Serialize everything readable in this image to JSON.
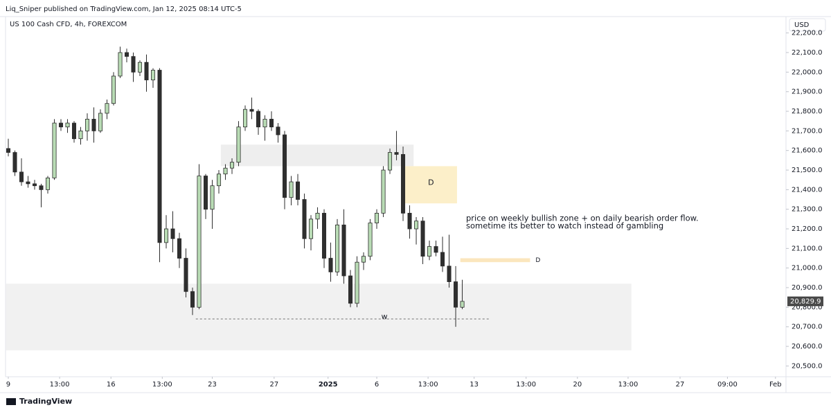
{
  "header": {
    "text": "Liq_Sniper published on TradingView.com, Jan 12, 2025 08:14 UTC-5"
  },
  "footer": {
    "brand": "TradingView"
  },
  "chart_data": {
    "type": "candlestick",
    "title": "US 100 Cash CFD, 4h, FOREXCOM",
    "currency": "USD",
    "grid": false,
    "up_color": "#b9dcb5",
    "down_color": "#2f2f2f",
    "outline_color": "#2b2b2b",
    "x": [
      0,
      1,
      2,
      3,
      4,
      5,
      6,
      7,
      8,
      9,
      10,
      11,
      12,
      13,
      14,
      15,
      16,
      17,
      18,
      19,
      20,
      21,
      22,
      23,
      24,
      25,
      26,
      27,
      28,
      29,
      30,
      31,
      32,
      33,
      34,
      35,
      36,
      37,
      38,
      39,
      40,
      41,
      42,
      43,
      44,
      45,
      46,
      47,
      48,
      49,
      50,
      51,
      52,
      53,
      54,
      55,
      56,
      57,
      58,
      59,
      60,
      61,
      62,
      63,
      64,
      65,
      66,
      67,
      68,
      69
    ],
    "open": [
      21610,
      21590,
      21490,
      21440,
      21430,
      21420,
      21400,
      21460,
      21740,
      21720,
      21740,
      21660,
      21700,
      21760,
      21700,
      21790,
      21840,
      21980,
      22100,
      22080,
      22000,
      22050,
      21960,
      22010,
      21130,
      21200,
      21150,
      21050,
      20880,
      20800,
      21470,
      21300,
      21420,
      21480,
      21510,
      21540,
      21720,
      21810,
      21800,
      21720,
      21760,
      21720,
      21680,
      21360,
      21440,
      21350,
      21150,
      21250,
      21280,
      21050,
      20980,
      21220,
      20960,
      20820,
      21030,
      21060,
      21230,
      21280,
      21500,
      21590,
      21580,
      21280,
      21200,
      21240,
      21060,
      21110,
      21080,
      21010,
      20930,
      20800
    ],
    "high": [
      21660,
      21600,
      21560,
      21470,
      21450,
      21430,
      21470,
      21760,
      21760,
      21760,
      21750,
      21720,
      21790,
      21820,
      21810,
      21860,
      22000,
      22130,
      22120,
      22100,
      22060,
      22090,
      22020,
      22020,
      21270,
      21290,
      21180,
      21100,
      20900,
      21530,
      21480,
      21450,
      21500,
      21530,
      21560,
      21750,
      21830,
      21870,
      21810,
      21780,
      21800,
      21740,
      21700,
      21470,
      21480,
      21380,
      21270,
      21310,
      21300,
      21130,
      21250,
      21300,
      20990,
      21060,
      21080,
      21250,
      21300,
      21520,
      21610,
      21700,
      21620,
      21320,
      21260,
      21260,
      21140,
      21140,
      21160,
      21170,
      21010,
      20940
    ],
    "low": [
      21570,
      21470,
      21420,
      21410,
      21400,
      21310,
      21380,
      21450,
      21700,
      21690,
      21640,
      21630,
      21650,
      21640,
      21690,
      21760,
      21830,
      21970,
      22050,
      21950,
      21980,
      21900,
      21920,
      21030,
      21100,
      21080,
      21000,
      20850,
      20760,
      20790,
      21250,
      21200,
      21380,
      21450,
      21480,
      21520,
      21700,
      21760,
      21680,
      21650,
      21700,
      21640,
      21300,
      21320,
      21320,
      21100,
      21090,
      21200,
      21000,
      20930,
      20960,
      20920,
      20800,
      20800,
      20990,
      21040,
      21200,
      21260,
      21480,
      21550,
      21240,
      21150,
      21120,
      21020,
      21040,
      21060,
      20980,
      20900,
      20700,
      20790
    ],
    "close": [
      21590,
      21490,
      21440,
      21430,
      21420,
      21400,
      21460,
      21740,
      21720,
      21740,
      21660,
      21700,
      21760,
      21700,
      21790,
      21840,
      21980,
      22100,
      22080,
      22000,
      22050,
      21960,
      22010,
      21130,
      21200,
      21150,
      21050,
      20880,
      20800,
      21470,
      21300,
      21420,
      21480,
      21510,
      21540,
      21720,
      21810,
      21800,
      21720,
      21760,
      21720,
      21680,
      21360,
      21440,
      21350,
      21150,
      21250,
      21280,
      21050,
      20980,
      21220,
      20960,
      20820,
      21030,
      21060,
      21230,
      21280,
      21500,
      21590,
      21580,
      21280,
      21200,
      21240,
      21060,
      21110,
      21080,
      21010,
      20930,
      20800,
      20829.9
    ],
    "last_price": {
      "value": 20829.9,
      "label": "20,829.9"
    },
    "xlim": [
      -0.42,
      118.2
    ],
    "xticks": [
      {
        "value": 0,
        "label": "9"
      },
      {
        "value": 7.8,
        "label": "13:00"
      },
      {
        "value": 15.6,
        "label": "16"
      },
      {
        "value": 23.4,
        "label": "13:00"
      },
      {
        "value": 31,
        "label": "23"
      },
      {
        "value": 40.4,
        "label": "27"
      },
      {
        "value": 48.6,
        "label": "2025"
      },
      {
        "value": 56,
        "label": "6"
      },
      {
        "value": 63.8,
        "label": "13:00"
      },
      {
        "value": 70.8,
        "label": "13"
      },
      {
        "value": 78.7,
        "label": "13:00"
      },
      {
        "value": 86.5,
        "label": "20"
      },
      {
        "value": 94.2,
        "label": "13:00"
      },
      {
        "value": 102.1,
        "label": "27"
      },
      {
        "value": 109.3,
        "label": "09:00"
      },
      {
        "value": 116.6,
        "label": "Feb"
      }
    ],
    "ylim": [
      20445,
      22280
    ],
    "yticks": [
      {
        "value": 20500,
        "label": "20,500.0"
      },
      {
        "value": 20600,
        "label": "20,600.0"
      },
      {
        "value": 20700,
        "label": "20,700.0"
      },
      {
        "value": 20800,
        "label": "20,800.0"
      },
      {
        "value": 20900,
        "label": "20,900.0"
      },
      {
        "value": 21000,
        "label": "21,000.0"
      },
      {
        "value": 21100,
        "label": "21,100.0"
      },
      {
        "value": 21200,
        "label": "21,200.0"
      },
      {
        "value": 21300,
        "label": "21,300.0"
      },
      {
        "value": 21400,
        "label": "21,400.0"
      },
      {
        "value": 21500,
        "label": "21,500.0"
      },
      {
        "value": 21600,
        "label": "21,600.0"
      },
      {
        "value": 21700,
        "label": "21,700.0"
      },
      {
        "value": 21800,
        "label": "21,800.0"
      },
      {
        "value": 21900,
        "label": "21,900.0"
      },
      {
        "value": 22000,
        "label": "22,000.0"
      },
      {
        "value": 22100,
        "label": "22,100.0"
      },
      {
        "value": 22200,
        "label": "22,200.0"
      }
    ],
    "zones": [
      {
        "x": [
          -0.4,
          94.7
        ],
        "price": [
          20580,
          20920
        ],
        "color": "#f1f1f1",
        "label": "w"
      },
      {
        "x": [
          32.3,
          61.6
        ],
        "price": [
          21520,
          21630
        ],
        "color": "#eeeeee"
      },
      {
        "x": [
          60.3,
          68.2
        ],
        "price": [
          21330,
          21520
        ],
        "color": "#fcefc9",
        "label": "D"
      },
      {
        "x": [
          68.7,
          79.3
        ],
        "price": [
          21030,
          21050
        ],
        "color": "#fbe6bd",
        "label": "D"
      }
    ],
    "levels": [
      {
        "x": [
          28.5,
          73.2
        ],
        "price": 20740
      }
    ],
    "annotation": [
      "price on weekly bullish zone + on daily bearish order flow.",
      "sometime its better to watch instead of gambling"
    ]
  }
}
